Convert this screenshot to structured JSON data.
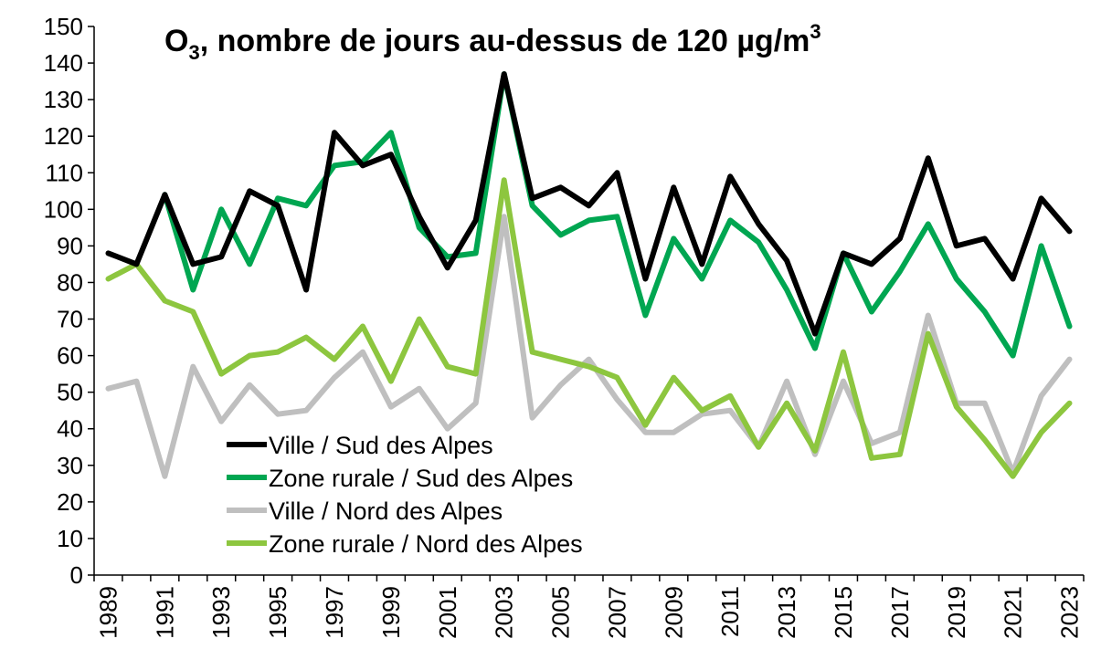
{
  "chart_data": {
    "type": "line",
    "title": {
      "prefix": "O",
      "subscript": "3",
      "main": ", nombre de jours au-dessus de 120 µg/m",
      "superscript": "3"
    },
    "xlabel": "",
    "ylabel": "",
    "ylim": [
      0,
      150
    ],
    "ytick_step": 10,
    "x": [
      1989,
      1990,
      1991,
      1992,
      1993,
      1994,
      1995,
      1996,
      1997,
      1998,
      1999,
      2000,
      2001,
      2002,
      2003,
      2004,
      2005,
      2006,
      2007,
      2008,
      2009,
      2010,
      2011,
      2012,
      2013,
      2014,
      2015,
      2016,
      2017,
      2018,
      2019,
      2020,
      2021,
      2022,
      2023
    ],
    "x_tick_labels": [
      1989,
      1991,
      1993,
      1995,
      1997,
      1999,
      2001,
      2003,
      2005,
      2007,
      2009,
      2011,
      2013,
      2015,
      2017,
      2019,
      2021,
      2023
    ],
    "grid": false,
    "legend_position": "bottom-left",
    "series": [
      {
        "name": "Ville / Sud des Alpes",
        "color": "#000000",
        "values": [
          88,
          85,
          104,
          85,
          87,
          105,
          101,
          78,
          121,
          112,
          115,
          98,
          84,
          97,
          137,
          103,
          106,
          101,
          110,
          81,
          106,
          85,
          109,
          96,
          86,
          66,
          88,
          85,
          92,
          114,
          90,
          92,
          81,
          103,
          94
        ]
      },
      {
        "name": "Zone rurale / Sud des Alpes",
        "color": "#00A651",
        "values": [
          null,
          null,
          104,
          78,
          100,
          85,
          103,
          101,
          112,
          113,
          121,
          95,
          87,
          88,
          137,
          101,
          93,
          97,
          98,
          71,
          92,
          81,
          97,
          91,
          78,
          62,
          88,
          72,
          83,
          96,
          81,
          72,
          60,
          90,
          68
        ]
      },
      {
        "name": "Ville / Nord des Alpes",
        "color": "#BFBFBF",
        "values": [
          51,
          53,
          27,
          57,
          42,
          52,
          44,
          45,
          54,
          61,
          46,
          51,
          40,
          47,
          98,
          43,
          52,
          59,
          48,
          39,
          39,
          44,
          45,
          35,
          53,
          33,
          53,
          36,
          39,
          71,
          47,
          47,
          28,
          49,
          59
        ]
      },
      {
        "name": "Zone rurale / Nord des Alpes",
        "color": "#8DC63F",
        "values": [
          81,
          85,
          75,
          72,
          55,
          60,
          61,
          65,
          59,
          68,
          53,
          70,
          57,
          55,
          108,
          61,
          59,
          57,
          54,
          41,
          54,
          45,
          49,
          35,
          47,
          34,
          61,
          32,
          33,
          66,
          46,
          37,
          27,
          39,
          47
        ]
      }
    ]
  }
}
